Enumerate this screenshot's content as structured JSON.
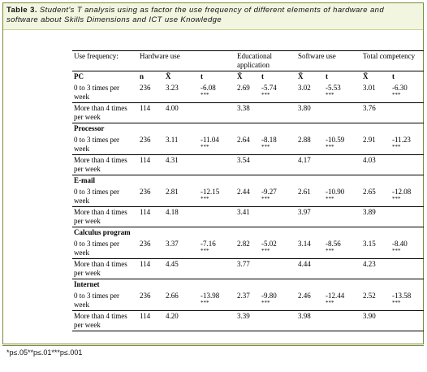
{
  "caption": {
    "label": "Table 3.",
    "text": "Student's T analysis using as factor the use frequency of different elements of hardware and software about Skills Dimensions and ICT use Knowledge"
  },
  "header": {
    "use_frequency": "Use frequency:",
    "hardware": "Hardware use",
    "educational": "Educational application",
    "software": "Software use",
    "total": "Total competency"
  },
  "subheader": {
    "pc": "PC",
    "n": "n",
    "mean": "X̄",
    "t": "t"
  },
  "groups": [
    {
      "name": "PC",
      "rows": [
        {
          "label": "0 to 3 times per week",
          "n": "236",
          "hw_mean": "3.23",
          "hw_t": "-6.08",
          "hw_sig": "***",
          "ed_mean": "2.69",
          "ed_t": "-5.74",
          "ed_sig": "***",
          "sw_mean": "3.02",
          "sw_t": "-5.53",
          "sw_sig": "***",
          "tot_mean": "3.01",
          "tot_t": "-6.30",
          "tot_sig": "***"
        },
        {
          "label": "More than 4 times per week",
          "n": "114",
          "hw_mean": "4.00",
          "ed_mean": "3.38",
          "sw_mean": "3.80",
          "tot_mean": "3.76"
        }
      ]
    },
    {
      "name": "Processor",
      "rows": [
        {
          "label": "0 to 3 times per week",
          "n": "236",
          "hw_mean": "3.11",
          "hw_t": "-11.04",
          "hw_sig": "***",
          "ed_mean": "2.64",
          "ed_t": "-8.18",
          "ed_sig": "***",
          "sw_mean": "2.88",
          "sw_t": "-10.59",
          "sw_sig": "***",
          "tot_mean": "2.91",
          "tot_t": "-11.23",
          "tot_sig": "***"
        },
        {
          "label": "More than 4 times per week",
          "n": "114",
          "hw_mean": "4.31",
          "ed_mean": "3.54",
          "sw_mean": "4.17",
          "tot_mean": "4.03"
        }
      ]
    },
    {
      "name": "E-mail",
      "rows": [
        {
          "label": "0 to 3 times per week",
          "n": "236",
          "hw_mean": "2.81",
          "hw_t": "-12.15",
          "hw_sig": "***",
          "ed_mean": "2.44",
          "ed_t": "-9.27",
          "ed_sig": "***",
          "sw_mean": "2.61",
          "sw_t": "-10.90",
          "sw_sig": "***",
          "tot_mean": "2.65",
          "tot_t": "-12.08",
          "tot_sig": "***"
        },
        {
          "label": "More than 4 times per week",
          "n": "114",
          "hw_mean": "4.18",
          "ed_mean": "3.41",
          "sw_mean": "3.97",
          "tot_mean": "3.89"
        }
      ]
    },
    {
      "name": "Calculus program",
      "rows": [
        {
          "label": "0 to 3 times per week",
          "n": "236",
          "hw_mean": "3.37",
          "hw_t": "-7.16",
          "hw_sig": "***",
          "ed_mean": "2.82",
          "ed_t": "-5.02",
          "ed_sig": "***",
          "sw_mean": "3.14",
          "sw_t": "-8.56",
          "sw_sig": "***",
          "tot_mean": "3.15",
          "tot_t": "-8.40",
          "tot_sig": "***"
        },
        {
          "label": "More than 4 times per week",
          "n": "114",
          "hw_mean": "4.45",
          "ed_mean": "3.77",
          "sw_mean": "4.44",
          "tot_mean": "4.23"
        }
      ]
    },
    {
      "name": "Internet",
      "rows": [
        {
          "label": "0 to 3 times per week",
          "n": "236",
          "hw_mean": "2.66",
          "hw_t": "-13.98",
          "hw_sig": "***",
          "ed_mean": "2.37",
          "ed_t": "-9.80",
          "ed_sig": "***",
          "sw_mean": "2.46",
          "sw_t": "-12.44",
          "sw_sig": "***",
          "tot_mean": "2.52",
          "tot_t": "-13.58",
          "tot_sig": "***"
        },
        {
          "label": "More than 4 times per week",
          "n": "114",
          "hw_mean": "4.20",
          "ed_mean": "3.39",
          "sw_mean": "3.98",
          "tot_mean": "3.90"
        }
      ]
    }
  ],
  "footnote": "*p≤.05**p≤.01***p≤.001"
}
